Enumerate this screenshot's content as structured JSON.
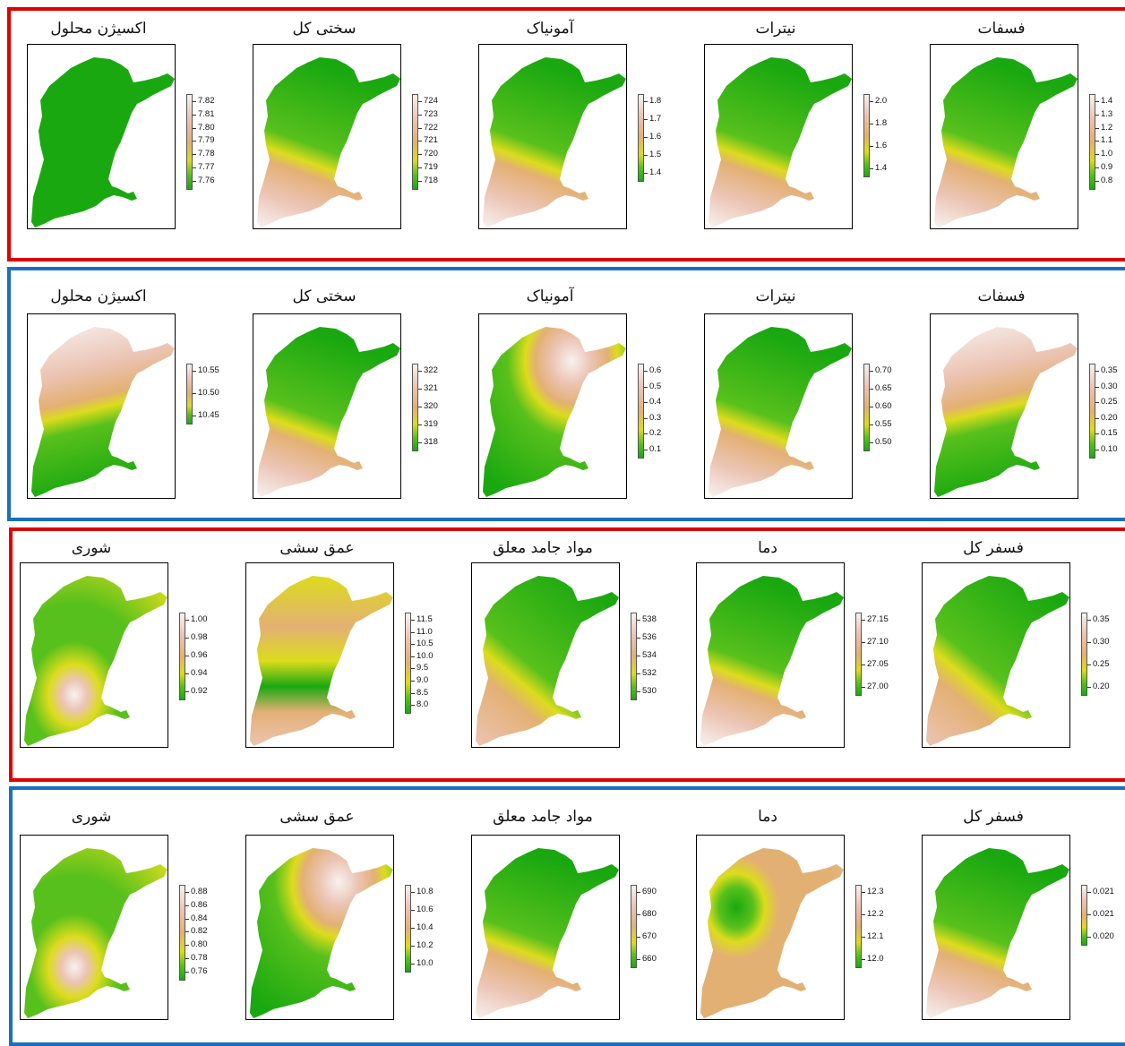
{
  "colors": {
    "frame_red": "#e00000",
    "frame_blue": "#1a6fc0",
    "ramp": [
      "#00a600",
      "#e6e600",
      "#ebb25e",
      "#f2f2f2"
    ]
  },
  "rows": [
    {
      "frame": "red",
      "maps": [
        {
          "title": "اکسیژن محلول",
          "ticks": [
            "7.82",
            "7.81",
            "7.80",
            "7.79",
            "7.78",
            "7.77",
            "7.76"
          ],
          "pattern": "uniform"
        },
        {
          "title": "سختی کل",
          "ticks": [
            "724",
            "723",
            "722",
            "721",
            "720",
            "719",
            "718"
          ],
          "pattern": "south_high"
        },
        {
          "title": "آمونیاک",
          "ticks": [
            "1.8",
            "1.7",
            "1.6",
            "1.5",
            "1.4"
          ],
          "pattern": "south_high"
        },
        {
          "title": "نیترات",
          "ticks": [
            "2.0",
            "1.8",
            "1.6",
            "1.4"
          ],
          "pattern": "south_high"
        },
        {
          "title": "فسفات",
          "ticks": [
            "1.4",
            "1.3",
            "1.2",
            "1.1",
            "1.0",
            "0.9",
            "0.8"
          ],
          "pattern": "south_high"
        }
      ]
    },
    {
      "frame": "blue",
      "maps": [
        {
          "title": "اکسیژن محلول",
          "ticks": [
            "10.55",
            "10.50",
            "10.45"
          ],
          "pattern": "north_high"
        },
        {
          "title": "سختی کل",
          "ticks": [
            "322",
            "321",
            "320",
            "319",
            "318"
          ],
          "pattern": "south_high"
        },
        {
          "title": "آمونیاک",
          "ticks": [
            "0.6",
            "0.5",
            "0.4",
            "0.3",
            "0.2",
            "0.1"
          ],
          "pattern": "northeast_high"
        },
        {
          "title": "نیترات",
          "ticks": [
            "0.70",
            "0.65",
            "0.60",
            "0.55",
            "0.50"
          ],
          "pattern": "south_high"
        },
        {
          "title": "فسفات",
          "ticks": [
            "0.35",
            "0.30",
            "0.25",
            "0.20",
            "0.15",
            "0.10"
          ],
          "pattern": "north_high"
        }
      ]
    },
    {
      "frame": "red",
      "maps": [
        {
          "title": "شوری",
          "ticks": [
            "1.00",
            "0.98",
            "0.96",
            "0.94",
            "0.92"
          ],
          "pattern": "center_spot"
        },
        {
          "title": "عمق سشی",
          "ticks": [
            "11.5",
            "11.0",
            "10.5",
            "10.0",
            "9.5",
            "9.0",
            "8.5",
            "8.0"
          ],
          "pattern": "mixed"
        },
        {
          "title": "مواد جامد معلق",
          "ticks": [
            "538",
            "536",
            "534",
            "532",
            "530"
          ],
          "pattern": "southwest_high"
        },
        {
          "title": "دما",
          "ticks": [
            "27.15",
            "27.10",
            "27.05",
            "27.00"
          ],
          "pattern": "south_high"
        },
        {
          "title": "فسفر کل",
          "ticks": [
            "0.35",
            "0.30",
            "0.25",
            "0.20"
          ],
          "pattern": "southwest_high"
        }
      ]
    },
    {
      "frame": "blue",
      "maps": [
        {
          "title": "شوری",
          "ticks": [
            "0.88",
            "0.86",
            "0.84",
            "0.82",
            "0.80",
            "0.78",
            "0.76"
          ],
          "pattern": "center_spot"
        },
        {
          "title": "عمق سشی",
          "ticks": [
            "10.8",
            "10.6",
            "10.4",
            "10.2",
            "10.0"
          ],
          "pattern": "northeast_high"
        },
        {
          "title": "مواد جامد معلق",
          "ticks": [
            "690",
            "680",
            "670",
            "660"
          ],
          "pattern": "south_high"
        },
        {
          "title": "دما",
          "ticks": [
            "12.3",
            "12.2",
            "12.1",
            "12.0"
          ],
          "pattern": "west_low"
        },
        {
          "title": "فسفر کل",
          "ticks": [
            "0.021",
            "0.021",
            "0.020"
          ],
          "pattern": "south_high"
        }
      ]
    }
  ]
}
